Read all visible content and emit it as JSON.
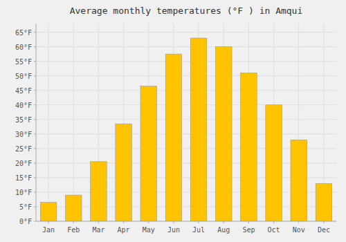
{
  "chart_data": {
    "type": "bar",
    "title": "Average monthly temperatures (°F ) in Amqui",
    "categories": [
      "Jan",
      "Feb",
      "Mar",
      "Apr",
      "May",
      "Jun",
      "Jul",
      "Aug",
      "Sep",
      "Oct",
      "Nov",
      "Dec"
    ],
    "values": [
      6.5,
      9.0,
      20.5,
      33.5,
      46.5,
      57.5,
      63.0,
      60.0,
      51.0,
      40.0,
      28.0,
      13.0
    ],
    "color": "#FFC300",
    "ylim": [
      0,
      68
    ],
    "yticks": [
      {
        "value": 0,
        "label": "0°F"
      },
      {
        "value": 5,
        "label": "5°F"
      },
      {
        "value": 10,
        "label": "10°F"
      },
      {
        "value": 15,
        "label": "15°F"
      },
      {
        "value": 20,
        "label": "20°F"
      },
      {
        "value": 25,
        "label": "25°F"
      },
      {
        "value": 30,
        "label": "30°F"
      },
      {
        "value": 35,
        "label": "35°F"
      },
      {
        "value": 40,
        "label": "40°F"
      },
      {
        "value": 45,
        "label": "45°F"
      },
      {
        "value": 50,
        "label": "50°F"
      },
      {
        "value": 55,
        "label": "55°F"
      },
      {
        "value": 60,
        "label": "60°F"
      },
      {
        "value": 65,
        "label": "65°F"
      }
    ],
    "grid": true
  }
}
